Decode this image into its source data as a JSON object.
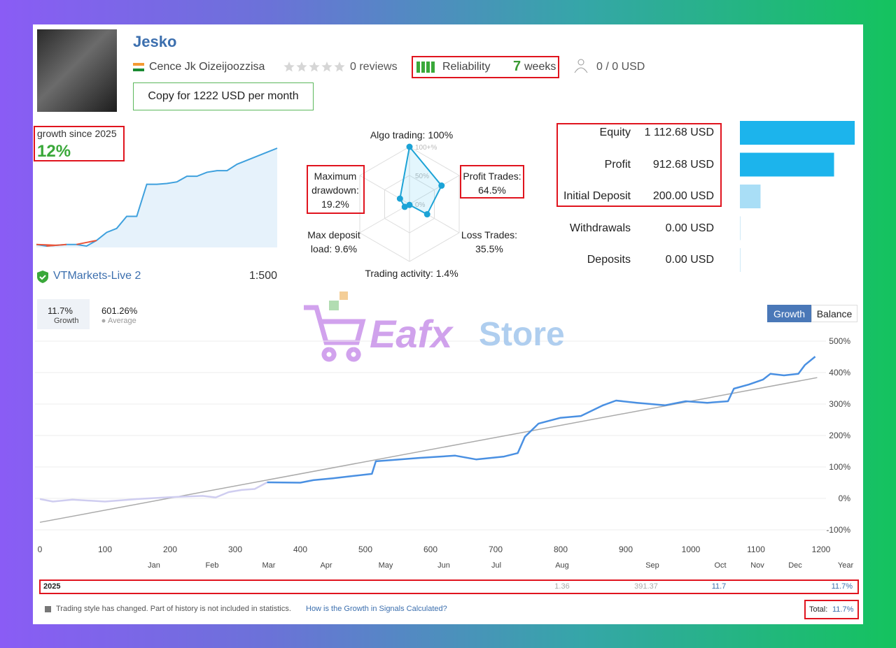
{
  "profile": {
    "name": "Jesko",
    "author": "Cence Jk Oizeijoozzisa",
    "reviews": "0 reviews",
    "reliability": {
      "label": "Reliability",
      "weeks": "7",
      "unit": "weeks"
    },
    "subscribers": "0 / 0 USD",
    "copy_button": "Copy for 1222 USD per month"
  },
  "growth_since": {
    "label": "growth since 2025",
    "value": "12%",
    "sparkline": [
      0,
      -0.2,
      -0.1,
      0,
      0,
      -0.2,
      0.5,
      1.5,
      2,
      3.5,
      3.5,
      7.5,
      7.5,
      7.6,
      7.8,
      8.5,
      8.5,
      9,
      9.2,
      9.2,
      10,
      10.5,
      11,
      11.5,
      12
    ]
  },
  "account": {
    "server": "VTMarkets-Live 2",
    "leverage": "1:500"
  },
  "radar": {
    "ticks": [
      {
        "value": 100,
        "label": "100+%"
      },
      {
        "value": 50,
        "label": "50%"
      },
      {
        "value": 0,
        "label": "0%"
      }
    ],
    "axes": [
      {
        "lines": [
          "Algo trading: 100%"
        ],
        "value": 100
      },
      {
        "lines": [
          "Profit Trades:",
          "64.5%"
        ],
        "value": 64.5
      },
      {
        "lines": [
          "Loss Trades:",
          "35.5%"
        ],
        "value": 35.5
      },
      {
        "lines": [
          "Trading activity: 1.4%"
        ],
        "value": 1.4
      },
      {
        "lines": [
          "Max deposit",
          "load: 9.6%"
        ],
        "value": 9.6
      },
      {
        "lines": [
          "Maximum",
          "drawdown:",
          "19.2%"
        ],
        "value": 19.2
      }
    ]
  },
  "summary": {
    "rows": [
      {
        "label": "Equity",
        "value": 1112.68,
        "value_label": "1 112.68 USD",
        "color": "#1cb4ec"
      },
      {
        "label": "Profit",
        "value": 912.68,
        "value_label": "912.68 USD",
        "color": "#1cb4ec"
      },
      {
        "label": "Initial Deposit",
        "value": 200,
        "value_label": "200.00 USD",
        "color": "#a9def6"
      },
      {
        "label": "Withdrawals",
        "value": 0,
        "value_label": "0.00 USD",
        "color": "#cfe9f7"
      },
      {
        "label": "Deposits",
        "value": 0,
        "value_label": "0.00 USD",
        "color": "#cfe9f7"
      }
    ]
  },
  "growth_chart": {
    "tabs": [
      "Growth",
      "Balance"
    ],
    "stats": [
      {
        "value": "11.7%",
        "label": "Growth",
        "color": "#4a90e2"
      },
      {
        "value": "601.26%",
        "label": "Average",
        "color": "#aaaaaa"
      }
    ],
    "xlim": [
      0,
      1200
    ],
    "xticks": [
      0,
      100,
      200,
      300,
      400,
      500,
      600,
      700,
      800,
      900,
      1000,
      1100,
      1200
    ],
    "ylim": [
      -100,
      500
    ],
    "yticks": [
      {
        "value": -100,
        "label": "-100%"
      },
      {
        "value": 0,
        "label": "0%"
      },
      {
        "value": 100,
        "label": "100%"
      },
      {
        "value": 200,
        "label": "200%"
      },
      {
        "value": 300,
        "label": "300%"
      },
      {
        "value": 400,
        "label": "400%"
      },
      {
        "value": 500,
        "label": "500%"
      }
    ],
    "months": [
      "Jan",
      "Feb",
      "Mar",
      "Apr",
      "May",
      "Jun",
      "Jul",
      "Aug",
      "Sep",
      "Oct",
      "Nov",
      "Dec",
      "Year"
    ],
    "grid": true,
    "series": [
      {
        "color": "#cfcdf0",
        "x": [
          0,
          20,
          50,
          100,
          150,
          200,
          250,
          270,
          290,
          310,
          330,
          349
        ],
        "values": [
          -2,
          -10,
          -4,
          -10,
          -2,
          4,
          8,
          3,
          20,
          27,
          30,
          51
        ]
      },
      {
        "color": "#4a90e2",
        "x": [
          349,
          400,
          420,
          450,
          480,
          510,
          516,
          541,
          584,
          638,
          670,
          713,
          734,
          745,
          766,
          799,
          831,
          865,
          885,
          917,
          960,
          992,
          1025,
          1057,
          1066,
          1089,
          1111,
          1122,
          1143,
          1165,
          1175,
          1191
        ],
        "values": [
          51,
          50,
          58,
          64,
          71,
          78,
          118,
          122,
          129,
          136,
          124,
          133,
          144,
          196,
          238,
          256,
          262,
          296,
          311,
          304,
          296,
          309,
          304,
          309,
          349,
          362,
          378,
          396,
          391,
          396,
          424,
          451
        ]
      },
      {
        "color": "#aaaaaa",
        "x": [
          0,
          1194
        ],
        "values": [
          -76,
          384
        ]
      }
    ]
  },
  "year_table": {
    "year": "2025",
    "cells": [
      "1.36",
      "391.37",
      "11.7",
      "11.7%"
    ]
  },
  "footer": {
    "note": "Trading style has changed. Part of history is not included in statistics.",
    "link": "How is the Growth in Signals Calculated?",
    "total_label": "Total:",
    "total_value": "11.7%"
  },
  "watermark": {
    "brand": "Eafx",
    "suffix": "Store"
  }
}
